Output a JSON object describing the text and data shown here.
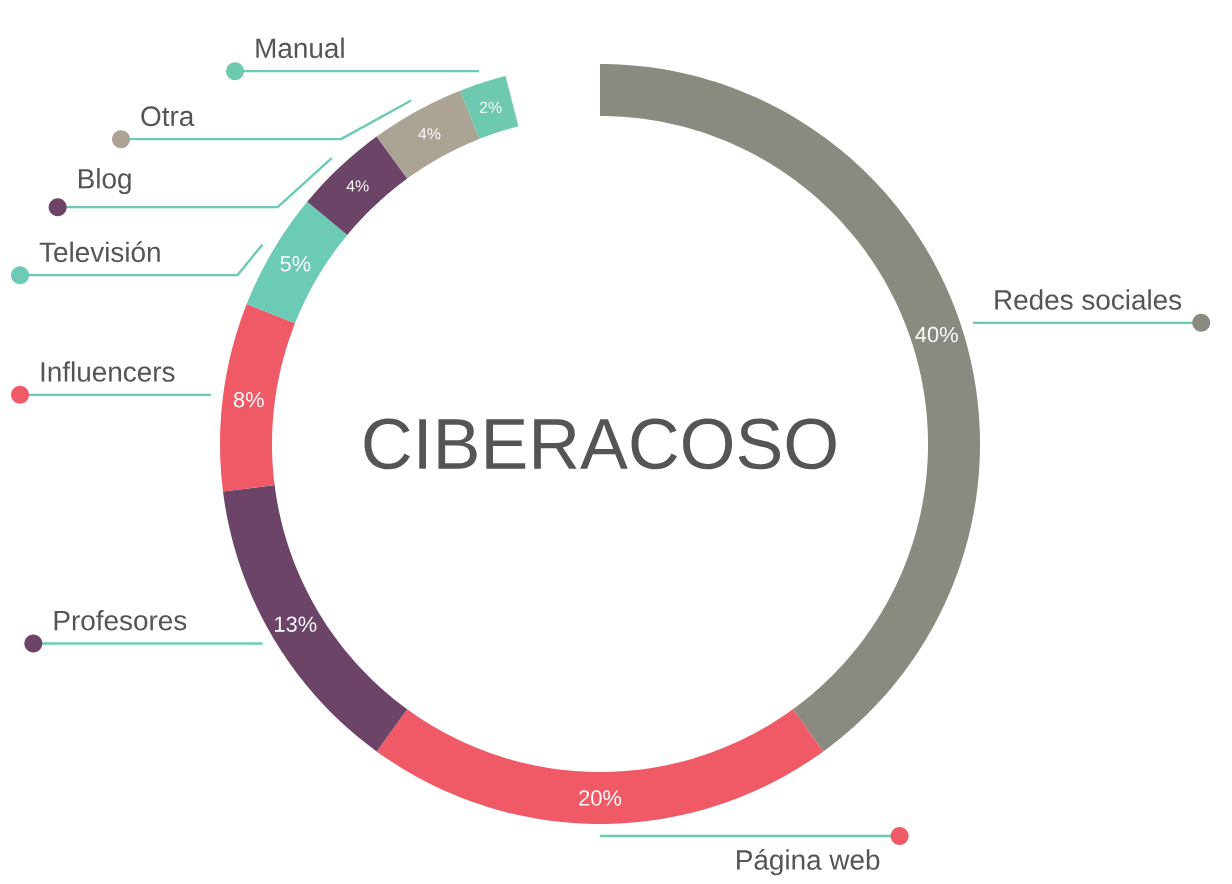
{
  "chart_data": {
    "type": "donut",
    "title": "CIBERACOSO",
    "categories": [
      "Redes sociales",
      "Página web",
      "Profesores",
      "Influencers",
      "Televisión",
      "Blog",
      "Otra",
      "Manual"
    ],
    "values": [
      40,
      20,
      13,
      8,
      5,
      4,
      4,
      2
    ],
    "value_labels": [
      "40%",
      "20%",
      "13%",
      "8%",
      "5%",
      "4%",
      "4%",
      "2%"
    ],
    "colors": [
      "#8a8a80",
      "#f05a66",
      "#6b4468",
      "#f05a66",
      "#6ccbb5",
      "#6b4468",
      "#aba394",
      "#6dc9b0"
    ]
  }
}
